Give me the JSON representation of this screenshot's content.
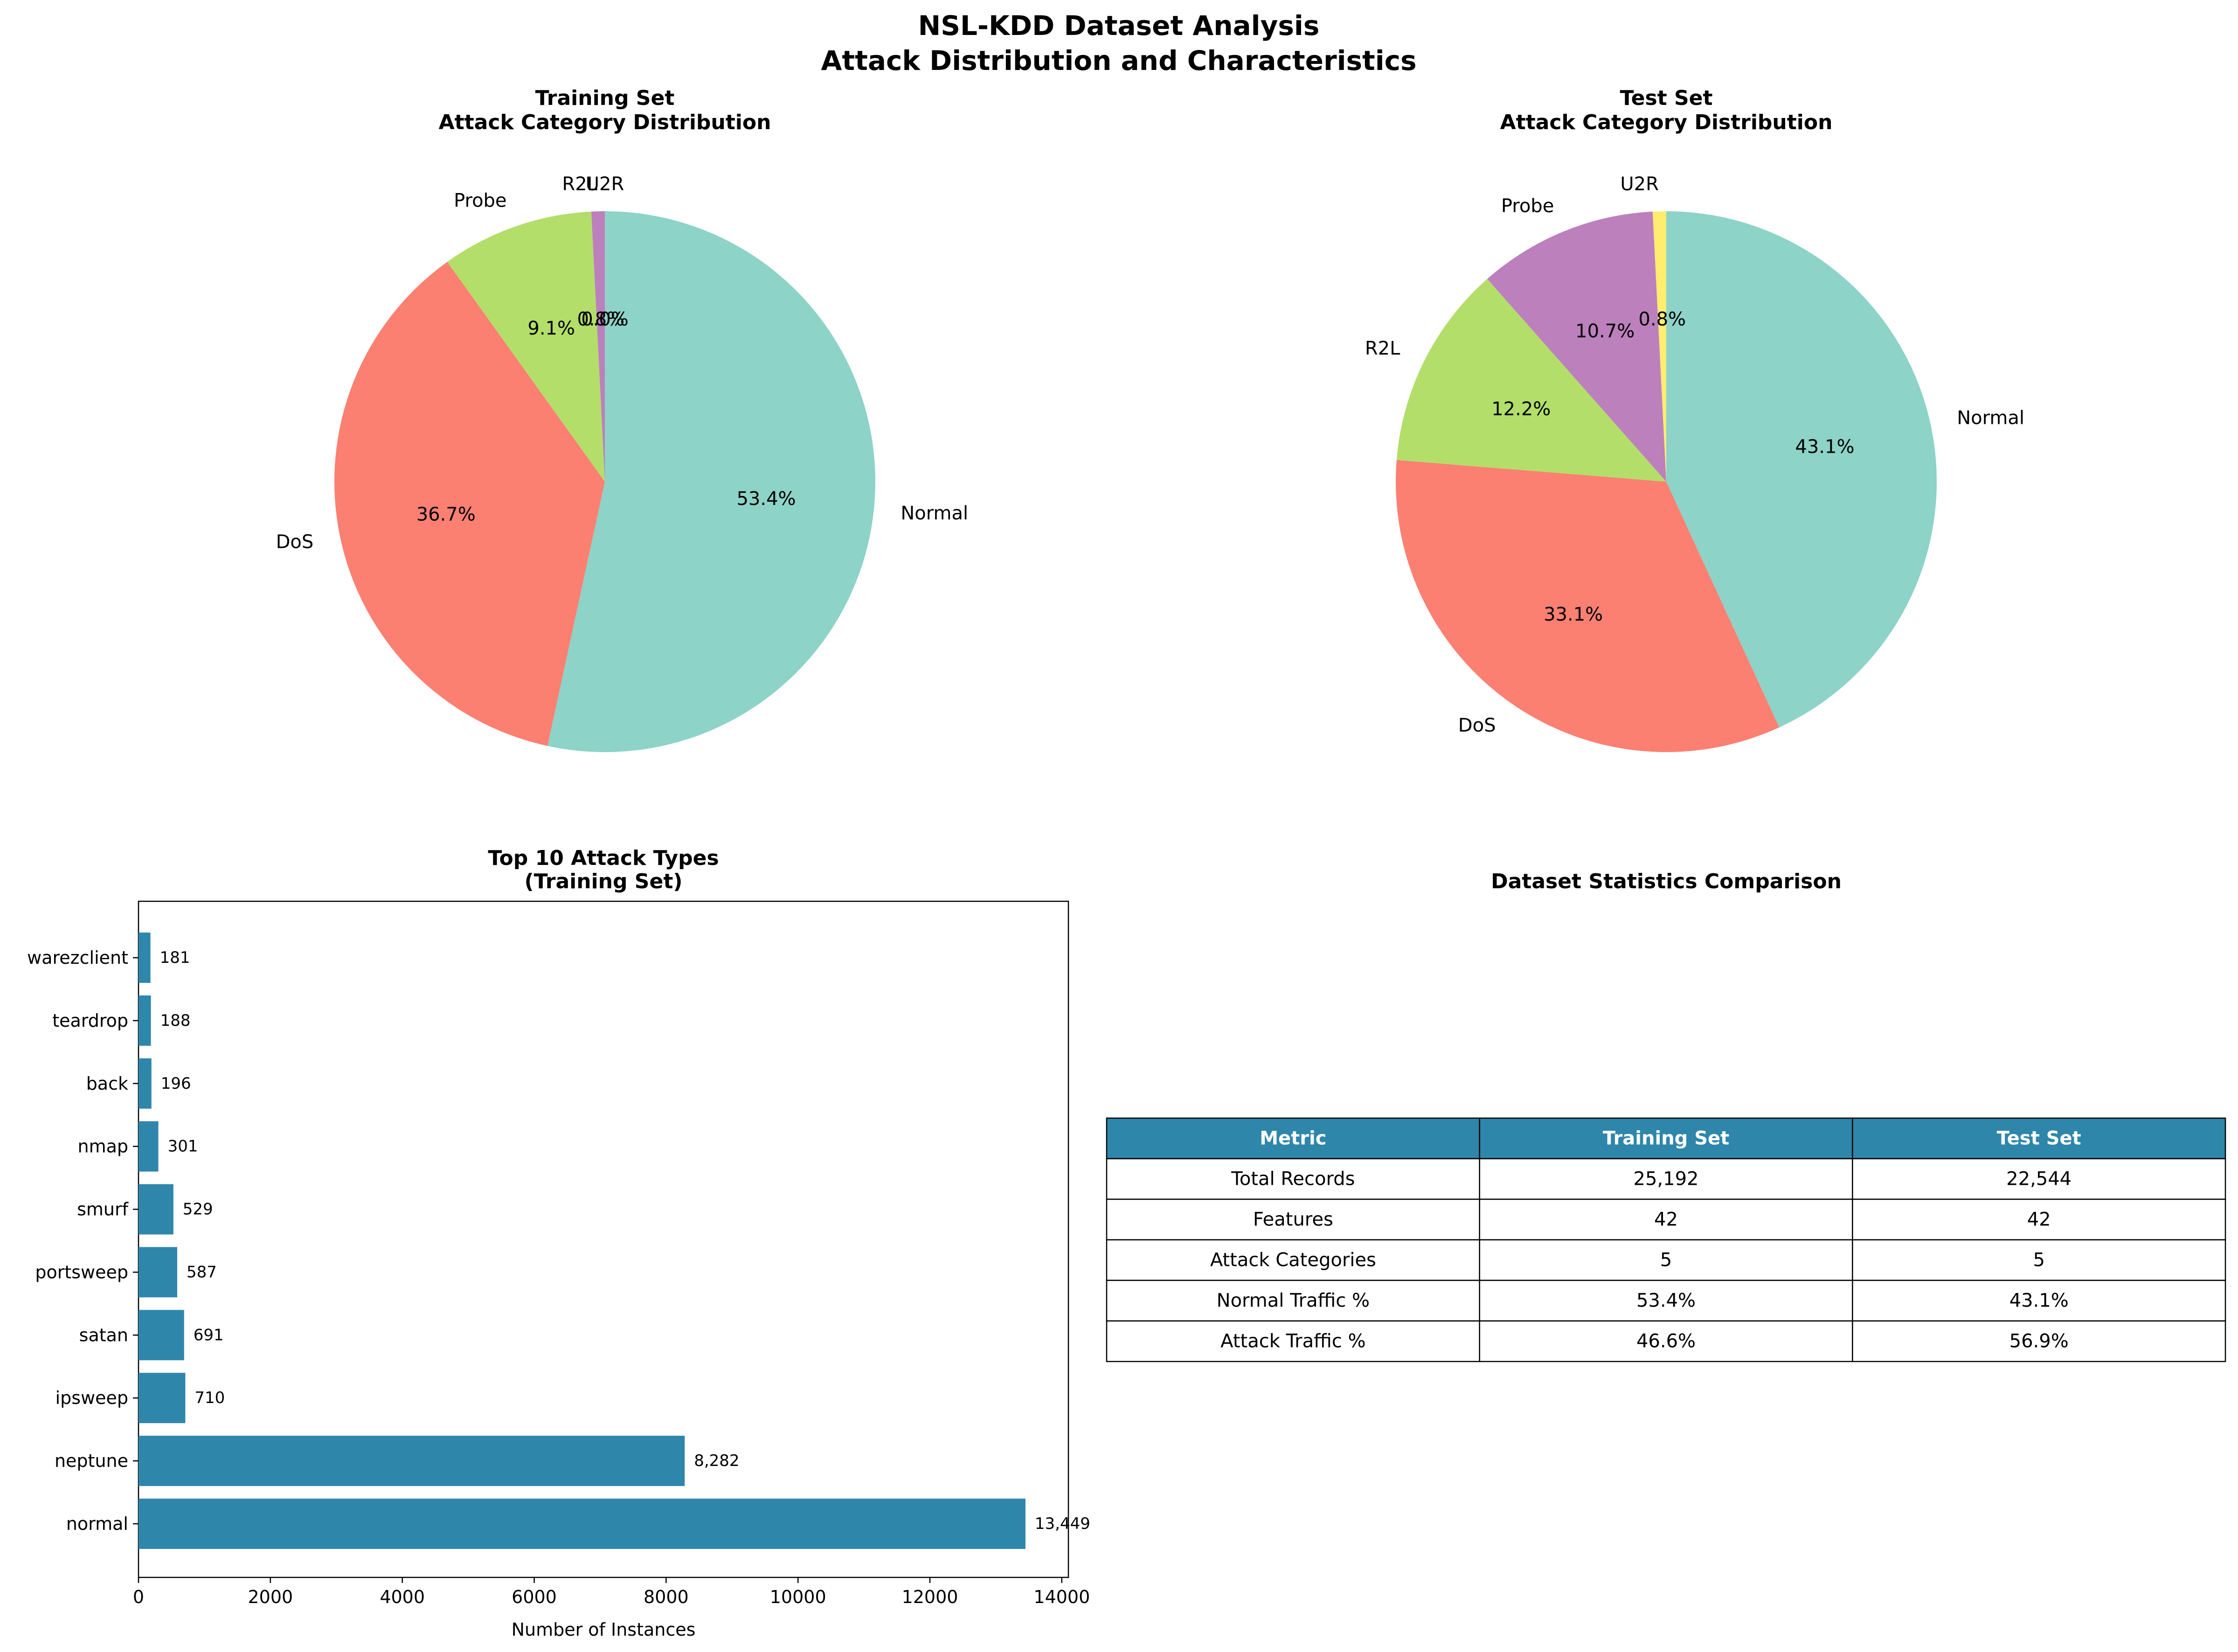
{
  "figure": {
    "title_line1": "NSL-KDD Dataset Analysis",
    "title_line2": "Attack Distribution and Characteristics"
  },
  "chart_data": [
    {
      "type": "pie",
      "title": "Training Set\nAttack Category Distribution",
      "labels": [
        "Normal",
        "DoS",
        "Probe",
        "R2L",
        "U2R"
      ],
      "values": [
        53.4,
        36.7,
        9.1,
        0.8,
        0.0
      ],
      "pct_labels": [
        "53.4%",
        "36.7%",
        "9.1%",
        "0.8%",
        "0.0%"
      ],
      "colors": [
        "#8dd3c7",
        "#fb8072",
        "#b3de69",
        "#bc80bd",
        "#ffed6f"
      ],
      "start_angle_deg": 90,
      "direction": "clockwise"
    },
    {
      "type": "pie",
      "title": "Test Set\nAttack Category Distribution",
      "labels": [
        "Normal",
        "DoS",
        "R2L",
        "Probe",
        "U2R"
      ],
      "values": [
        43.1,
        33.1,
        12.2,
        10.7,
        0.8
      ],
      "pct_labels": [
        "43.1%",
        "33.1%",
        "12.2%",
        "10.7%",
        "0.8%"
      ],
      "colors": [
        "#8dd3c7",
        "#fb8072",
        "#b3de69",
        "#bc80bd",
        "#ffed6f"
      ],
      "start_angle_deg": 90,
      "direction": "clockwise"
    },
    {
      "type": "bar",
      "orientation": "horizontal",
      "title": "Top 10 Attack Types\n(Training Set)",
      "categories": [
        "normal",
        "neptune",
        "ipsweep",
        "satan",
        "portsweep",
        "smurf",
        "nmap",
        "back",
        "teardrop",
        "warezclient"
      ],
      "values": [
        13449,
        8282,
        710,
        691,
        587,
        529,
        301,
        196,
        188,
        181
      ],
      "value_labels": [
        "13,449",
        "8,282",
        "710",
        "691",
        "587",
        "529",
        "301",
        "196",
        "188",
        "181"
      ],
      "xlabel": "Number of Instances",
      "xlim": [
        0,
        14100
      ],
      "xticks": [
        0,
        2000,
        4000,
        6000,
        8000,
        10000,
        12000,
        14000
      ],
      "bar_color": "#2e86ab"
    },
    {
      "type": "table",
      "title": "Dataset Statistics Comparison",
      "columns": [
        "Metric",
        "Training Set",
        "Test Set"
      ],
      "rows": [
        [
          "Total Records",
          "25,192",
          "22,544"
        ],
        [
          "Features",
          "42",
          "42"
        ],
        [
          "Attack Categories",
          "5",
          "5"
        ],
        [
          "Normal Traffic %",
          "53.4%",
          "43.1%"
        ],
        [
          "Attack Traffic %",
          "46.6%",
          "56.9%"
        ]
      ],
      "header_color": "#2e86ab"
    }
  ]
}
